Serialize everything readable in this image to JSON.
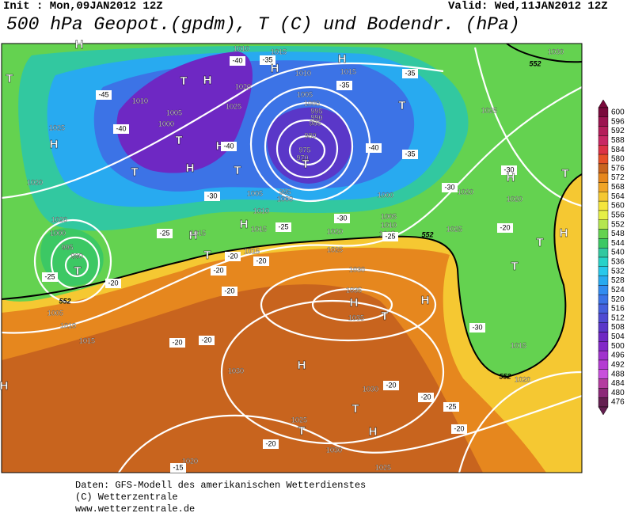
{
  "header": {
    "init": "Init : Mon,09JAN2012 12Z",
    "valid": "Valid: Wed,11JAN2012 12Z",
    "title": "500 hPa Geopot.(gpdm), T (C) und Bodendr. (hPa)"
  },
  "colorbar": {
    "levels": [
      600,
      596,
      592,
      588,
      584,
      580,
      576,
      572,
      568,
      564,
      560,
      556,
      552,
      548,
      544,
      540,
      536,
      532,
      528,
      524,
      520,
      516,
      512,
      508,
      504,
      500,
      496,
      492,
      488,
      484,
      480,
      476
    ],
    "colors": [
      "#7a0a3c",
      "#9c1450",
      "#b41e5a",
      "#c82864",
      "#dc3246",
      "#e65028",
      "#c8641e",
      "#e6871e",
      "#f0a528",
      "#f5c832",
      "#f5e63c",
      "#e6f046",
      "#b4e650",
      "#64d250",
      "#3cc864",
      "#32c8a0",
      "#28d2c8",
      "#28c8eb",
      "#28aaf0",
      "#328cf0",
      "#3c73e6",
      "#4660dc",
      "#504bd2",
      "#5a37c8",
      "#6e28c3",
      "#8228c8",
      "#a032cd",
      "#b43cd2",
      "#c850dc",
      "#b43ca0",
      "#8c2878",
      "#641e50"
    ]
  },
  "map_labels": [
    "H",
    "T",
    "H",
    "1025",
    "1020",
    "T",
    "-40",
    "-45",
    "1010",
    "1005",
    "1000",
    "T",
    "H",
    "T",
    "H",
    "1010",
    "-35",
    "1015",
    "H",
    "-40",
    "1020",
    "1025",
    "1010",
    "1005",
    "1000",
    "995",
    "990",
    "985",
    "980",
    "975",
    "970",
    "T",
    "H",
    "-40",
    "T",
    "1005",
    "1000",
    "995",
    "1010",
    "1015",
    "-30",
    "-25",
    "H",
    "1015",
    "H",
    "-25",
    "1020",
    "1025",
    "1030",
    "1035",
    "H",
    "1035",
    "-35",
    "1015",
    "H",
    "-35",
    "T",
    "-35",
    "-40",
    "1000",
    "1005",
    "1010",
    "1015",
    "1025",
    "-30",
    "-25",
    "1020",
    "-30",
    "1025",
    "-30",
    "H",
    "T",
    "1020",
    "-20",
    "T",
    "H",
    "T",
    "H",
    "T",
    "-30",
    "1015",
    "1020",
    "1030",
    "T",
    "995",
    "990",
    "1000",
    "1020",
    "-25",
    "552",
    "1005",
    "1010",
    "1015",
    "T",
    "-20",
    "-20",
    "-20",
    "1015",
    "-20",
    "-20",
    "-20",
    "-20",
    "H",
    "1030",
    "1030",
    "-20",
    "T",
    "1025",
    "T",
    "H",
    "-20",
    "1030",
    "1020",
    "-15",
    "1025",
    "-20",
    "-25",
    "-20",
    "H",
    "552",
    "552",
    "552"
  ],
  "footer": [
    "Daten: GFS-Modell des amerikanischen Wetterdienstes",
    "(C) Wetterzentrale",
    "www.wetterzentrale.de"
  ]
}
